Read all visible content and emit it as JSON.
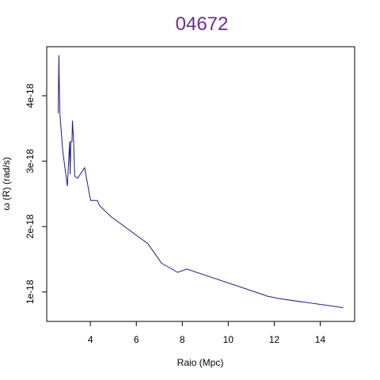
{
  "chart_data": {
    "type": "line",
    "title": "04672",
    "xlabel": "Raio (Mpc)",
    "ylabel": "ω (R) (rad/s)",
    "xlim": [
      2.1,
      15.5
    ],
    "ylim": [
      5.5e-19,
      4.75e-18
    ],
    "x_ticks": [
      4,
      6,
      8,
      10,
      12,
      14
    ],
    "x_tick_labels": [
      "4",
      "6",
      "8",
      "10",
      "12",
      "14"
    ],
    "y_ticks": [
      1e-18,
      2e-18,
      3e-18,
      4e-18
    ],
    "y_tick_labels": [
      "1e-18",
      "2e-18",
      "3e-18",
      "4e-18"
    ],
    "grid": false,
    "colors": {
      "line": "#1a1a8c",
      "title": "#6b2c91"
    },
    "series": [
      {
        "x": [
          2.6,
          2.63,
          2.65,
          2.68,
          2.8,
          3.0,
          3.1,
          3.12,
          3.15,
          3.2,
          3.22,
          3.27,
          3.32,
          3.45,
          3.75,
          3.97,
          4.02,
          4.3,
          4.4,
          4.9,
          6.5,
          7.1,
          7.8,
          8.2,
          11.6,
          11.65,
          12.2,
          15.0
        ],
        "y": [
          3.73e-18,
          4.62e-18,
          4.1e-18,
          3.7e-18,
          3.15e-18,
          2.62e-18,
          3.3e-18,
          2.8e-18,
          3.3e-18,
          3.3e-18,
          3.62e-18,
          3.3e-18,
          2.77e-18,
          2.74e-18,
          2.9e-18,
          2.47e-18,
          2.4e-18,
          2.4e-18,
          2.32e-18,
          2.15e-18,
          1.74e-18,
          1.44e-18,
          1.3e-18,
          1.35e-18,
          9.5e-19,
          9.4e-19,
          9e-19,
          7.6e-19
        ]
      }
    ]
  }
}
